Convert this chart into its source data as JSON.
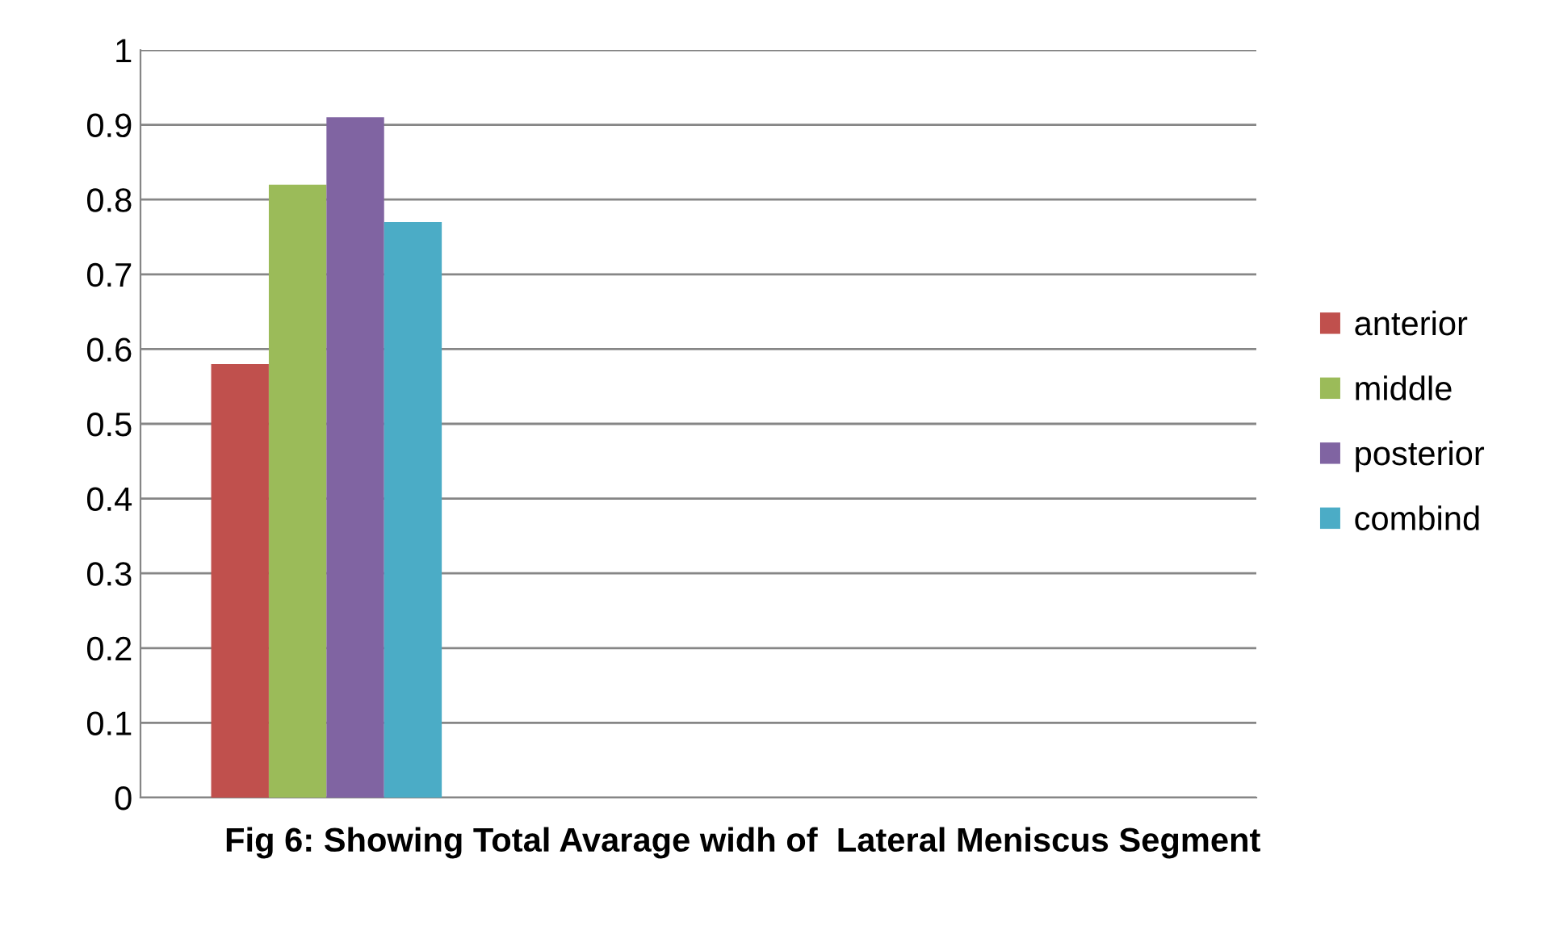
{
  "chart_data": {
    "type": "bar",
    "title": "Fig 6: Showing Total Avarage widh of  Lateral Meniscus Segment",
    "categories": [
      null,
      null,
      null
    ],
    "series": [
      {
        "name": "anterior",
        "color": "#c0504d",
        "values": [
          0.58,
          null,
          null
        ]
      },
      {
        "name": "middle",
        "color": "#9bbb59",
        "values": [
          0.82,
          null,
          null
        ]
      },
      {
        "name": "posterior",
        "color": "#8064a2",
        "values": [
          0.91,
          null,
          null
        ]
      },
      {
        "name": "combind",
        "color": "#4bacc6",
        "values": [
          0.77,
          null,
          null
        ]
      }
    ],
    "ylim": [
      0,
      1
    ],
    "yticks": [
      0,
      0.1,
      0.2,
      0.3,
      0.4,
      0.5,
      0.6,
      0.7,
      0.8,
      0.9,
      1
    ],
    "grid": "y",
    "legend": "right"
  }
}
